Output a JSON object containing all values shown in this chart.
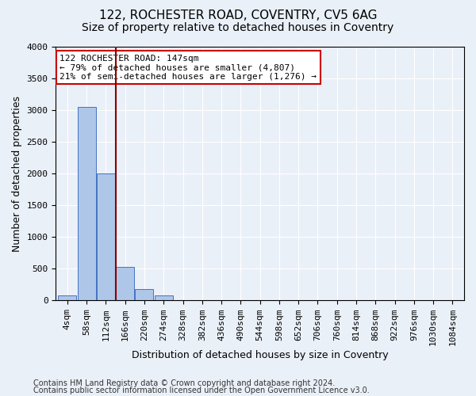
{
  "title_line1": "122, ROCHESTER ROAD, COVENTRY, CV5 6AG",
  "title_line2": "Size of property relative to detached houses in Coventry",
  "xlabel": "Distribution of detached houses by size in Coventry",
  "ylabel": "Number of detached properties",
  "bin_labels": [
    "4sqm",
    "58sqm",
    "112sqm",
    "166sqm",
    "220sqm",
    "274sqm",
    "328sqm",
    "382sqm",
    "436sqm",
    "490sqm",
    "544sqm",
    "598sqm",
    "652sqm",
    "706sqm",
    "760sqm",
    "814sqm",
    "868sqm",
    "922sqm",
    "976sqm",
    "1030sqm",
    "1084sqm"
  ],
  "bar_heights": [
    75,
    3050,
    2000,
    530,
    185,
    80,
    10,
    10,
    0,
    0,
    0,
    0,
    0,
    0,
    0,
    0,
    0,
    0,
    0,
    0,
    0
  ],
  "bar_color": "#aec6e8",
  "bar_edge_color": "#4472c4",
  "vertical_line_x": 2.5,
  "vertical_line_color": "#8b0000",
  "annotation_text": "122 ROCHESTER ROAD: 147sqm\n← 79% of detached houses are smaller (4,807)\n21% of semi-detached houses are larger (1,276) →",
  "annotation_box_color": "#ffffff",
  "annotation_box_edge": "#cc0000",
  "ylim": [
    0,
    4000
  ],
  "yticks": [
    0,
    500,
    1000,
    1500,
    2000,
    2500,
    3000,
    3500,
    4000
  ],
  "footer_line1": "Contains HM Land Registry data © Crown copyright and database right 2024.",
  "footer_line2": "Contains public sector information licensed under the Open Government Licence v3.0.",
  "bg_color": "#eaf0f8",
  "plot_bg_color": "#eaf0f8",
  "title_fontsize": 11,
  "subtitle_fontsize": 10,
  "axis_label_fontsize": 9,
  "tick_fontsize": 8,
  "footer_fontsize": 7
}
